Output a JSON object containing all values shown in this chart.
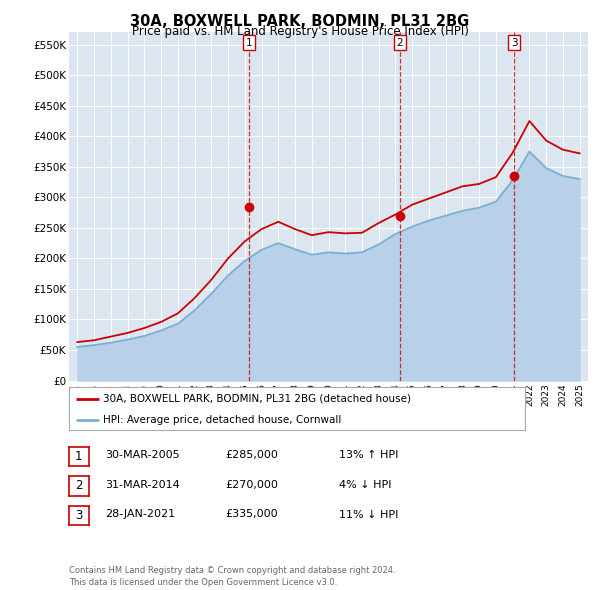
{
  "title": "30A, BOXWELL PARK, BODMIN, PL31 2BG",
  "subtitle": "Price paid vs. HM Land Registry's House Price Index (HPI)",
  "ylabel_ticks": [
    "£0",
    "£50K",
    "£100K",
    "£150K",
    "£200K",
    "£250K",
    "£300K",
    "£350K",
    "£400K",
    "£450K",
    "£500K",
    "£550K"
  ],
  "ylim": [
    0,
    570000
  ],
  "yticks": [
    0,
    50000,
    100000,
    150000,
    200000,
    250000,
    300000,
    350000,
    400000,
    450000,
    500000,
    550000
  ],
  "x_years": [
    1995,
    1996,
    1997,
    1998,
    1999,
    2000,
    2001,
    2002,
    2003,
    2004,
    2005,
    2006,
    2007,
    2008,
    2009,
    2010,
    2011,
    2012,
    2013,
    2014,
    2015,
    2016,
    2017,
    2018,
    2019,
    2020,
    2021,
    2022,
    2023,
    2024,
    2025
  ],
  "red_y": [
    63000,
    66000,
    72000,
    78000,
    86000,
    96000,
    110000,
    135000,
    165000,
    200000,
    228000,
    248000,
    260000,
    248000,
    238000,
    243000,
    241000,
    242000,
    258000,
    272000,
    288000,
    298000,
    308000,
    318000,
    322000,
    333000,
    373000,
    425000,
    393000,
    378000,
    372000
  ],
  "blue_y": [
    55000,
    58000,
    62000,
    67000,
    73000,
    82000,
    93000,
    115000,
    142000,
    172000,
    196000,
    214000,
    225000,
    215000,
    206000,
    210000,
    208000,
    210000,
    223000,
    240000,
    252000,
    262000,
    270000,
    278000,
    283000,
    293000,
    328000,
    375000,
    348000,
    335000,
    330000
  ],
  "sale_dates": [
    2005.23,
    2014.25,
    2021.08
  ],
  "sale_prices": [
    285000,
    270000,
    335000
  ],
  "sale_labels": [
    "1",
    "2",
    "3"
  ],
  "legend_line1": "30A, BOXWELL PARK, BODMIN, PL31 2BG (detached house)",
  "legend_line2": "HPI: Average price, detached house, Cornwall",
  "table_data": [
    [
      "1",
      "30-MAR-2005",
      "£285,000",
      "13% ↑ HPI"
    ],
    [
      "2",
      "31-MAR-2014",
      "£270,000",
      "4% ↓ HPI"
    ],
    [
      "3",
      "28-JAN-2021",
      "£335,000",
      "11% ↓ HPI"
    ]
  ],
  "footer": "Contains HM Land Registry data © Crown copyright and database right 2024.\nThis data is licensed under the Open Government Licence v3.0.",
  "red_color": "#cc0000",
  "blue_color": "#7bafd4",
  "blue_fill": "#b8d0e8",
  "background_color": "#ffffff",
  "plot_bg_color": "#dce6f0"
}
